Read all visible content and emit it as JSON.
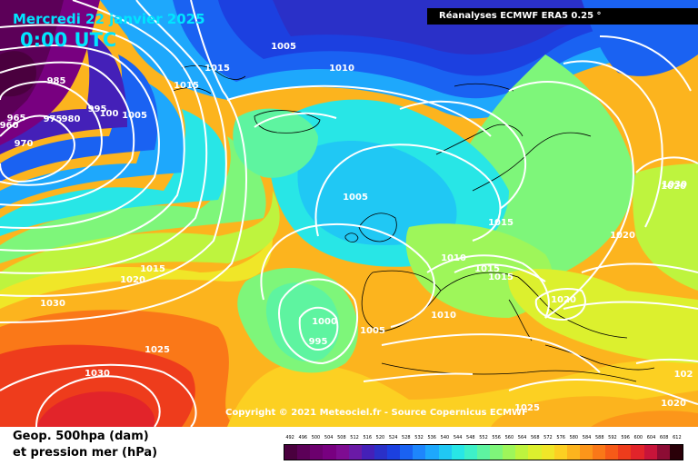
{
  "header": {
    "date": "Mercredi 22 janvier 2025",
    "time": "0:00 UTC",
    "source": "Réanalyses ECMWF ERA5 0.25 °"
  },
  "copyright": "Copyright © 2021 Meteociel.fr - Source Copernicus ECMWF",
  "legend": {
    "title_line1": "Geop. 500hpa (dam)",
    "title_line2": "et pression mer (hPa)",
    "scale": [
      "492",
      "496",
      "500",
      "504",
      "508",
      "512",
      "516",
      "520",
      "524",
      "528",
      "532",
      "536",
      "540",
      "544",
      "548",
      "552",
      "556",
      "560",
      "564",
      "568",
      "572",
      "576",
      "580",
      "584",
      "588",
      "592",
      "596",
      "600",
      "604",
      "608",
      "612"
    ],
    "colors": [
      "#4a003e",
      "#5c0058",
      "#6c006e",
      "#780080",
      "#7e0c92",
      "#6a1aa6",
      "#4420b8",
      "#2a30c8",
      "#1c40e0",
      "#1a62f2",
      "#1e86fc",
      "#1ea8fc",
      "#20c8f4",
      "#28e6e6",
      "#3ef0c8",
      "#5ef4a0",
      "#7ef67a",
      "#9ef65a",
      "#bef43e",
      "#dcf02e",
      "#f0e628",
      "#fcd022",
      "#fcb41e",
      "#fc961a",
      "#fa7818",
      "#f65a18",
      "#ee3c1c",
      "#e2242a",
      "#c8143a",
      "#8c0c34",
      "#2a0008"
    ]
  },
  "isobars": [
    {
      "label": "985"
    },
    {
      "label": "965"
    },
    {
      "label": "960"
    },
    {
      "label": "975"
    },
    {
      "label": "980"
    },
    {
      "label": "970"
    },
    {
      "label": "995"
    },
    {
      "label": "100"
    },
    {
      "label": "1005"
    },
    {
      "label": "1015"
    },
    {
      "label": "1015"
    },
    {
      "label": "1005"
    },
    {
      "label": "1010"
    },
    {
      "label": "1005"
    },
    {
      "label": "1015"
    },
    {
      "label": "1010"
    },
    {
      "label": "1015"
    },
    {
      "label": "1015"
    },
    {
      "label": "1020"
    },
    {
      "label": "1030"
    },
    {
      "label": "1020"
    },
    {
      "label": "1020"
    },
    {
      "label": "1015"
    },
    {
      "label": "1020"
    },
    {
      "label": "1030"
    },
    {
      "label": "1025"
    },
    {
      "label": "1030"
    },
    {
      "label": "1000"
    },
    {
      "label": "995"
    },
    {
      "label": "1005"
    },
    {
      "label": "1010"
    },
    {
      "label": "1025"
    },
    {
      "label": "102"
    },
    {
      "label": "1020"
    }
  ]
}
